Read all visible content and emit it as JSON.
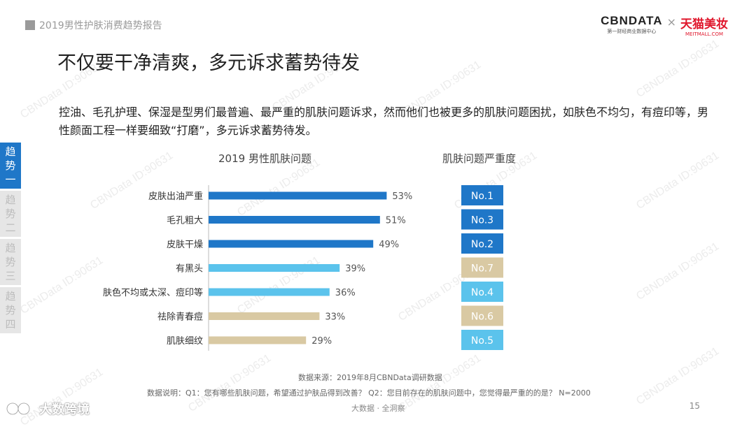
{
  "header": {
    "report_title": "2019男性护肤消费趋势报告",
    "logo_cbn": "CBNDATA",
    "logo_cbn_sub": "第一财经商业数据中心",
    "logo_x": "×",
    "logo_tmall": "天猫美妆",
    "logo_tmall_sub": "MEITMALL.COM"
  },
  "page_title": "不仅要干净清爽，多元诉求蓄势待发",
  "description": "控油、毛孔护理、保湿是型男们最普遍、最严重的肌肤问题诉求，然而他们也被更多的肌肤问题困扰，如肤色不均匀，有痘印等，男性颜面工程一样要细致“打磨”，多元诉求蓄势待发。",
  "side_tabs": [
    {
      "label": "趋势一",
      "active": true
    },
    {
      "label": "趋势二",
      "active": false
    },
    {
      "label": "趋势三",
      "active": false
    },
    {
      "label": "趋势四",
      "active": false
    }
  ],
  "chart_data": {
    "type": "bar",
    "title": "2019 男性肌肤问题",
    "orientation": "horizontal",
    "categories": [
      "皮肤出油严重",
      "毛孔粗大",
      "皮肤干燥",
      "有黑头",
      "肤色不均或太深、痘印等",
      "祛除青春痘",
      "肌肤细纹"
    ],
    "values": [
      53,
      51,
      49,
      39,
      36,
      33,
      29
    ],
    "value_labels": [
      "53%",
      "51%",
      "49%",
      "39%",
      "36%",
      "33%",
      "29%"
    ],
    "bar_colors": [
      "#1f77c8",
      "#1f77c8",
      "#1f77c8",
      "#5bc3ec",
      "#5bc3ec",
      "#d9c9a3",
      "#d9c9a3"
    ],
    "xlim": [
      0,
      100
    ],
    "severity_title": "肌肤问题严重度",
    "severity_ranks": [
      "No.1",
      "No.3",
      "No.2",
      "No.7",
      "No.4",
      "No.6",
      "No.5"
    ],
    "severity_colors": [
      "#1f77c8",
      "#1f77c8",
      "#1f77c8",
      "#d9c9a3",
      "#5bc3ec",
      "#d9c9a3",
      "#5bc3ec"
    ]
  },
  "footer": {
    "source": "数据来源：2019年8月CBNData调研数据",
    "note": "数据说明：Q1：您有哪些肌肤问题，希望通过护肤品得到改善？ Q2：您目前存在的肌肤问题中，您觉得最严重的的是？ N=2000",
    "tagline": "大数据 · 全洞察",
    "page_number": "15",
    "bottom_brand": "大数跨境"
  },
  "watermark": "CBNData ID:90631"
}
